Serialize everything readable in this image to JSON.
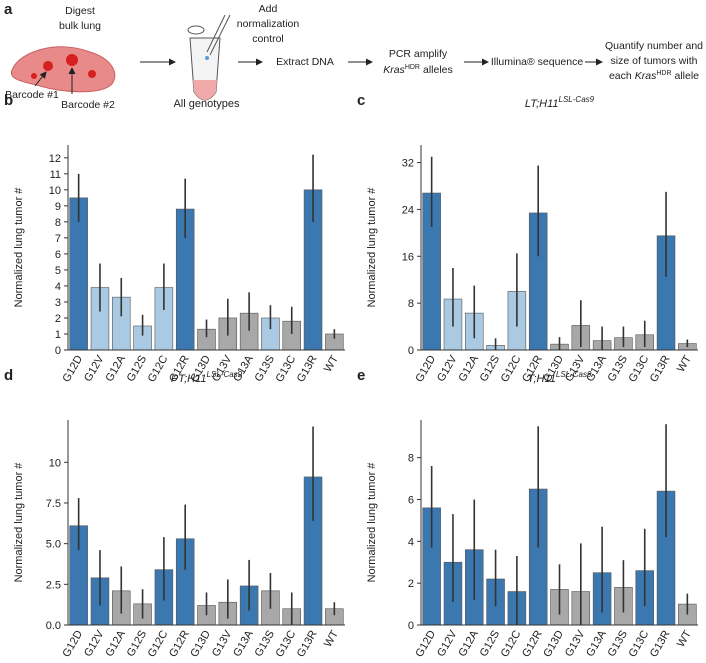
{
  "schematic": {
    "panel": "a",
    "digest": [
      "Digest",
      "bulk lung"
    ],
    "barcodes": [
      "Barcode #1",
      "Barcode #2"
    ],
    "normalization": [
      "Add",
      "normalization",
      "control"
    ],
    "extract": "Extract DNA",
    "pcr": {
      "line1": "PCR amplify",
      "gene": "Kras",
      "superscript": "HDR",
      "tail": "alleles"
    },
    "sequence": "Illumina® sequence",
    "quantify": {
      "line1": "Quantify number and",
      "line2": "size of tumors with",
      "prefix": "each",
      "gene": "Kras",
      "superscript": "HDR",
      "tail": "allele"
    }
  },
  "chart_data": [
    {
      "type": "bar",
      "panel": "b",
      "title": "All genotypes",
      "ylabel": "Normalized lung tumor #",
      "categories": [
        "G12D",
        "G12V",
        "G12A",
        "G12S",
        "G12C",
        "G12R",
        "G13D",
        "G13V",
        "G13A",
        "G13S",
        "G13C",
        "G13R",
        "WT"
      ],
      "values": [
        9.5,
        3.9,
        3.3,
        1.5,
        3.9,
        8.8,
        1.3,
        2.0,
        2.3,
        2.0,
        1.8,
        10.0,
        1.0
      ],
      "ci_low": [
        8.0,
        2.4,
        2.1,
        0.9,
        2.5,
        7.0,
        0.8,
        0.9,
        1.2,
        1.3,
        1.0,
        8.0,
        0.7
      ],
      "ci_high": [
        11.0,
        5.4,
        4.5,
        2.2,
        5.4,
        10.7,
        1.9,
        3.2,
        3.6,
        2.8,
        2.7,
        12.2,
        1.3
      ],
      "colors": [
        "#3b78b0",
        "#a9cae2",
        "#a9cae2",
        "#a9cae2",
        "#a9cae2",
        "#3b78b0",
        "#a8a8a8",
        "#a8a8a8",
        "#a8a8a8",
        "#a9cae2",
        "#a8a8a8",
        "#3b78b0",
        "#a8a8a8"
      ],
      "ylim": [
        0,
        12.8
      ],
      "yticks": [
        0,
        1,
        2,
        3,
        4,
        5,
        6,
        7,
        8,
        9,
        10,
        11,
        12
      ]
    },
    {
      "type": "bar",
      "panel": "c",
      "title": {
        "text": "LT;H11",
        "superscript": "LSL-Cas9"
      },
      "ylabel": "Normalized lung tumor #",
      "categories": [
        "G12D",
        "G12V",
        "G12A",
        "G12S",
        "G12C",
        "G12R",
        "G13D",
        "G13V",
        "G13A",
        "G13S",
        "G13C",
        "G13R",
        "WT"
      ],
      "values": [
        26.8,
        8.7,
        6.3,
        0.8,
        10.0,
        23.4,
        1.0,
        4.2,
        1.6,
        2.1,
        2.6,
        19.5,
        1.1
      ],
      "ci_low": [
        21.0,
        4.0,
        2.0,
        0.0,
        4.0,
        16.0,
        0.0,
        0.5,
        0.0,
        0.5,
        0.5,
        12.5,
        0.5
      ],
      "ci_high": [
        33.0,
        14.0,
        11.0,
        2.0,
        16.5,
        31.5,
        2.2,
        8.5,
        4.0,
        4.0,
        5.0,
        27.0,
        1.8
      ],
      "colors": [
        "#3b78b0",
        "#a9cae2",
        "#a9cae2",
        "#a9cae2",
        "#a9cae2",
        "#3b78b0",
        "#a8a8a8",
        "#a8a8a8",
        "#a8a8a8",
        "#a8a8a8",
        "#a8a8a8",
        "#3b78b0",
        "#a8a8a8"
      ],
      "ylim": [
        0,
        35
      ],
      "yticks": [
        0,
        8,
        16,
        24,
        32
      ]
    },
    {
      "type": "bar",
      "panel": "d",
      "title": {
        "text": "PT;H11",
        "superscript": "LSL-Cas9"
      },
      "ylabel": "Normalized lung tumor #",
      "categories": [
        "G12D",
        "G12V",
        "G12A",
        "G12S",
        "G12C",
        "G12R",
        "G13D",
        "G13V",
        "G13A",
        "G13S",
        "G13C",
        "G13R",
        "WT"
      ],
      "values": [
        6.1,
        2.9,
        2.1,
        1.3,
        3.4,
        5.3,
        1.2,
        1.4,
        2.4,
        2.1,
        1.0,
        9.1,
        1.0
      ],
      "ci_low": [
        4.6,
        1.2,
        0.7,
        0.4,
        1.5,
        3.4,
        0.6,
        0.4,
        0.9,
        1.0,
        0.0,
        6.4,
        0.6
      ],
      "ci_high": [
        7.8,
        4.6,
        3.6,
        2.2,
        5.4,
        7.4,
        2.0,
        2.8,
        4.0,
        3.2,
        2.0,
        12.2,
        1.4
      ],
      "colors": [
        "#3b78b0",
        "#3b78b0",
        "#a8a8a8",
        "#a8a8a8",
        "#3b78b0",
        "#3b78b0",
        "#a8a8a8",
        "#a8a8a8",
        "#3b78b0",
        "#a8a8a8",
        "#a8a8a8",
        "#3b78b0",
        "#a8a8a8"
      ],
      "ylim": [
        0,
        12.6
      ],
      "yticks": [
        {
          "value": 0,
          "label": "0.0"
        },
        2.5,
        {
          "value": 5,
          "label": "5.0"
        },
        7.5,
        10
      ]
    },
    {
      "type": "bar",
      "panel": "e",
      "title": {
        "text": "T;H11",
        "superscript": "LSL-Cas9"
      },
      "ylabel": "Normalized lung tumor #",
      "categories": [
        "G12D",
        "G12V",
        "G12A",
        "G12S",
        "G12C",
        "G12R",
        "G13D",
        "G13V",
        "G13A",
        "G13S",
        "G13C",
        "G13R",
        "WT"
      ],
      "values": [
        5.6,
        3.0,
        3.6,
        2.2,
        1.6,
        6.5,
        1.7,
        1.6,
        2.5,
        1.8,
        2.6,
        6.4,
        1.0
      ],
      "ci_low": [
        3.7,
        1.1,
        1.2,
        0.9,
        0.0,
        3.7,
        0.5,
        0.0,
        0.6,
        0.6,
        0.9,
        4.2,
        0.5
      ],
      "ci_high": [
        7.6,
        5.3,
        6.0,
        3.6,
        3.3,
        9.5,
        2.9,
        3.9,
        4.7,
        3.1,
        4.6,
        9.6,
        1.5
      ],
      "colors": [
        "#3b78b0",
        "#3b78b0",
        "#3b78b0",
        "#3b78b0",
        "#3b78b0",
        "#3b78b0",
        "#a8a8a8",
        "#a8a8a8",
        "#3b78b0",
        "#a8a8a8",
        "#3b78b0",
        "#3b78b0",
        "#a8a8a8"
      ],
      "ylim": [
        0,
        9.8
      ],
      "yticks": [
        0,
        2,
        4,
        6,
        8
      ]
    }
  ]
}
